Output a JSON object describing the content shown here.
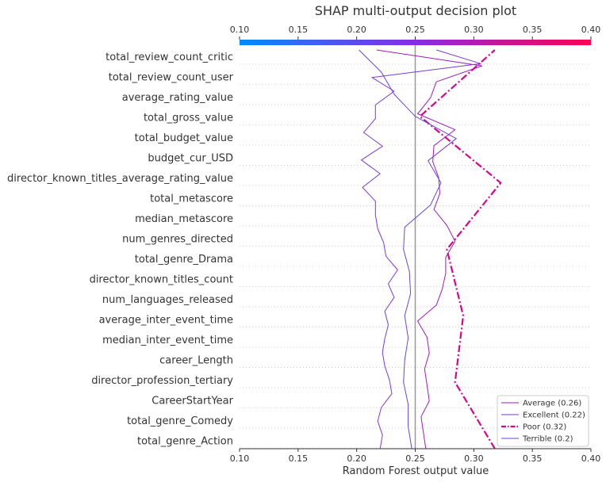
{
  "chart_data": {
    "type": "line",
    "title": "SHAP multi-output decision plot",
    "xlabel": "Random Forest output value",
    "xlim": [
      0.1,
      0.4
    ],
    "x_ticks": [
      "0.10",
      "0.15",
      "0.20",
      "0.25",
      "0.30",
      "0.35",
      "0.40"
    ],
    "base_value": 0.25,
    "colorbar_range": [
      0.1,
      0.4
    ],
    "colorbar_colors": [
      "#008bfb",
      "#8a2be2",
      "#ff0052"
    ],
    "legend_position": "bottom-right",
    "features": [
      "total_review_count_critic",
      "total_review_count_user",
      "average_rating_value",
      "total_gross_value",
      "total_budget_value",
      "budget_cur_USD",
      "director_known_titles_average_rating_value",
      "total_metascore",
      "median_metascore",
      "num_genres_directed",
      "total_genre_Drama",
      "director_known_titles_count",
      "num_languages_released",
      "average_inter_event_time",
      "median_inter_event_time",
      "career_Length",
      "director_profession_tertiary",
      "CareerStartYear",
      "total_genre_Comedy",
      "total_genre_Action"
    ],
    "series": [
      {
        "name": "Average (0.26)",
        "color": "#9b1fb5",
        "dash": "solid",
        "width": 1,
        "values": [
          0.259,
          0.257,
          0.255,
          0.262,
          0.26,
          0.258,
          0.262,
          0.26,
          0.252,
          0.268,
          0.273,
          0.276,
          0.276,
          0.284,
          0.277,
          0.266,
          0.271,
          0.27,
          0.265,
          0.266,
          0.284,
          0.252,
          0.263,
          0.268,
          0.307,
          0.217
        ]
      },
      {
        "name": "Excellent (0.22)",
        "color": "#7b3ad6",
        "dash": "solid",
        "width": 1,
        "values": [
          0.22,
          0.222,
          0.218,
          0.221,
          0.23,
          0.228,
          0.224,
          0.222,
          0.224,
          0.227,
          0.224,
          0.232,
          0.227,
          0.235,
          0.225,
          0.223,
          0.218,
          0.216,
          0.216,
          0.205,
          0.22,
          0.204,
          0.222,
          0.206,
          0.216,
          0.216,
          0.232,
          0.213,
          0.306,
          0.268
        ]
      },
      {
        "name": "Poor (0.32)",
        "color": "#d10a8c",
        "dash": "dashdot",
        "width": 2.2,
        "values": [
          0.318,
          0.284,
          0.291,
          0.277,
          0.323,
          0.254,
          0.318
        ]
      },
      {
        "name": "Terrible (0.2)",
        "color": "#6a45dc",
        "dash": "solid",
        "width": 1,
        "values": [
          0.247,
          0.244,
          0.244,
          0.24,
          0.241,
          0.244,
          0.241,
          0.246,
          0.245,
          0.24,
          0.241,
          0.263,
          0.272,
          0.261,
          0.285,
          0.25,
          0.232,
          0.221,
          0.202
        ]
      }
    ]
  }
}
